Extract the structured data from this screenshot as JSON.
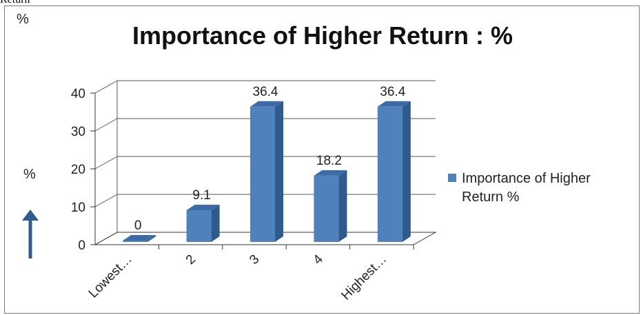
{
  "top_caption": "Return",
  "corner_label": "%",
  "axis_side_label": "%",
  "legend": {
    "label_line1": "Importance of Higher",
    "label_line2": "Return  %"
  },
  "colors": {
    "bar_front": "#4f81bd",
    "bar_side": "#2f5a8c",
    "bar_top": "#3d6ba5",
    "arrow": "#2f5a8c"
  },
  "chart_data": {
    "type": "bar",
    "title": "Importance of Higher Return : %",
    "categories": [
      "Lowest…",
      "2",
      "3",
      "4",
      "Highest…"
    ],
    "series": [
      {
        "name": "Importance of Higher Return  %",
        "values": [
          0,
          9.1,
          36.4,
          18.2,
          36.4
        ],
        "data_labels": [
          "0",
          "9.1",
          "36.4",
          "18.2",
          "36.4"
        ]
      }
    ],
    "y_ticks": [
      "0",
      "10",
      "20",
      "30",
      "40"
    ],
    "ylim": [
      0,
      40
    ],
    "grid": true,
    "legend_position": "right",
    "style": "3d-column"
  }
}
